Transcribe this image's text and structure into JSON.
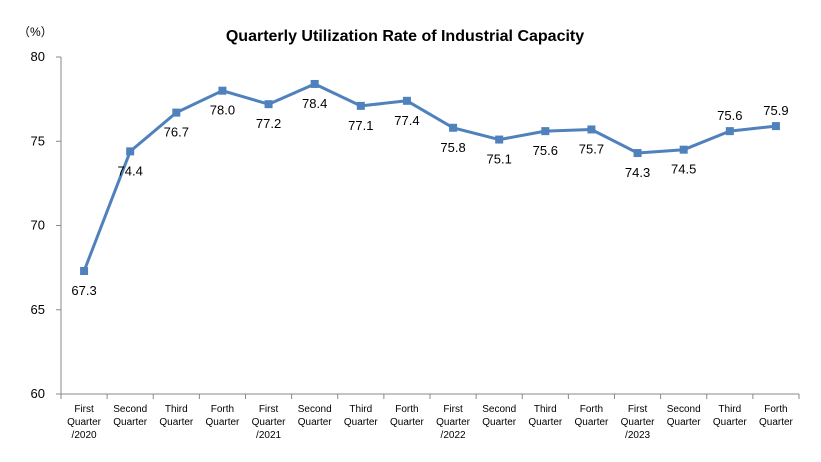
{
  "chart_data": {
    "type": "line",
    "title": "Quarterly Utilization Rate of Industrial Capacity",
    "unit_label": "（%）",
    "ylim": [
      60,
      80
    ],
    "yticks": [
      60,
      65,
      70,
      75,
      80
    ],
    "grid": false,
    "legend": "none",
    "categories": [
      [
        "First",
        "Quarter",
        "/2020"
      ],
      [
        "Second",
        "Quarter"
      ],
      [
        "Third",
        "Quarter"
      ],
      [
        "Forth",
        "Quarter"
      ],
      [
        "First",
        "Quarter",
        "/2021"
      ],
      [
        "Second",
        "Quarter"
      ],
      [
        "Third",
        "Quarter"
      ],
      [
        "Forth",
        "Quarter"
      ],
      [
        "First",
        "Quarter",
        "/2022"
      ],
      [
        "Second",
        "Quarter"
      ],
      [
        "Third",
        "Quarter"
      ],
      [
        "Forth",
        "Quarter"
      ],
      [
        "First",
        "Quarter",
        "/2023"
      ],
      [
        "Second",
        "Quarter"
      ],
      [
        "Third",
        "Quarter"
      ],
      [
        "Forth",
        "Quarter"
      ]
    ],
    "values": [
      67.3,
      74.4,
      76.7,
      78.0,
      77.2,
      78.4,
      77.1,
      77.4,
      75.8,
      75.1,
      75.6,
      75.7,
      74.3,
      74.5,
      75.6,
      75.9
    ],
    "value_labels": [
      "67.3",
      "74.4",
      "76.7",
      "78.0",
      "77.2",
      "78.4",
      "77.1",
      "77.4",
      "75.8",
      "75.1",
      "75.6",
      "75.7",
      "74.3",
      "74.5",
      "75.6",
      "75.9"
    ],
    "label_positions": [
      "below",
      "below",
      "below",
      "below",
      "below",
      "below",
      "below",
      "below",
      "below",
      "below",
      "below",
      "below",
      "below",
      "below",
      "above",
      "above"
    ],
    "colors": {
      "series": "#4F81BD",
      "axis": "#888888"
    }
  }
}
